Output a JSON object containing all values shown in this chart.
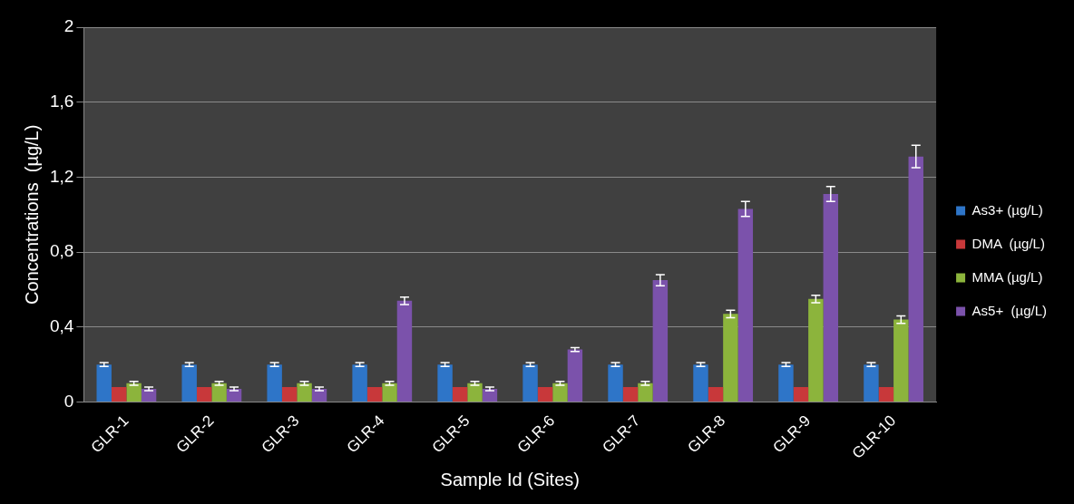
{
  "chart_data": {
    "type": "bar",
    "xlabel": "Sample Id (Sites)",
    "ylabel": "Concentrations  (µg/L)",
    "categories": [
      "GLR-1",
      "GLR-2",
      "GLR-3",
      "GLR-4",
      "GLR-5",
      "GLR-6",
      "GLR-7",
      "GLR-8",
      "GLR-9",
      "GLR-10"
    ],
    "series": [
      {
        "name": "As3+ (µg/L)",
        "color": "#2e75c8",
        "values": [
          0.2,
          0.2,
          0.2,
          0.2,
          0.2,
          0.2,
          0.2,
          0.2,
          0.2,
          0.2
        ],
        "errors": [
          0.01,
          0.01,
          0.01,
          0.01,
          0.01,
          0.01,
          0.01,
          0.01,
          0.01,
          0.01
        ]
      },
      {
        "name": "DMA  (µg/L)",
        "color": "#c8383a",
        "values": [
          0.08,
          0.08,
          0.08,
          0.08,
          0.08,
          0.08,
          0.08,
          0.08,
          0.08,
          0.08
        ]
      },
      {
        "name": "MMA (µg/L)",
        "color": "#8cb43c",
        "values": [
          0.1,
          0.1,
          0.1,
          0.1,
          0.1,
          0.1,
          0.1,
          0.47,
          0.55,
          0.44
        ],
        "errors": [
          0.01,
          0.01,
          0.01,
          0.01,
          0.01,
          0.01,
          0.01,
          0.02,
          0.02,
          0.02
        ]
      },
      {
        "name": "As5+  (µg/L)",
        "color": "#7b52ab",
        "values": [
          0.07,
          0.07,
          0.07,
          0.54,
          0.07,
          0.28,
          0.65,
          1.03,
          1.11,
          1.31
        ],
        "errors": [
          0.01,
          0.01,
          0.01,
          0.02,
          0.01,
          0.01,
          0.03,
          0.04,
          0.04,
          0.06
        ]
      }
    ],
    "ylim": [
      0,
      2
    ],
    "yticks": [
      0,
      {
        "value": 0.4,
        "label": "0,4"
      },
      {
        "value": 0.8,
        "label": "0,8"
      },
      {
        "value": 1.2,
        "label": "1,2"
      },
      {
        "value": 1.6,
        "label": "1,6"
      },
      2
    ],
    "grid": "y",
    "legend": "right"
  }
}
